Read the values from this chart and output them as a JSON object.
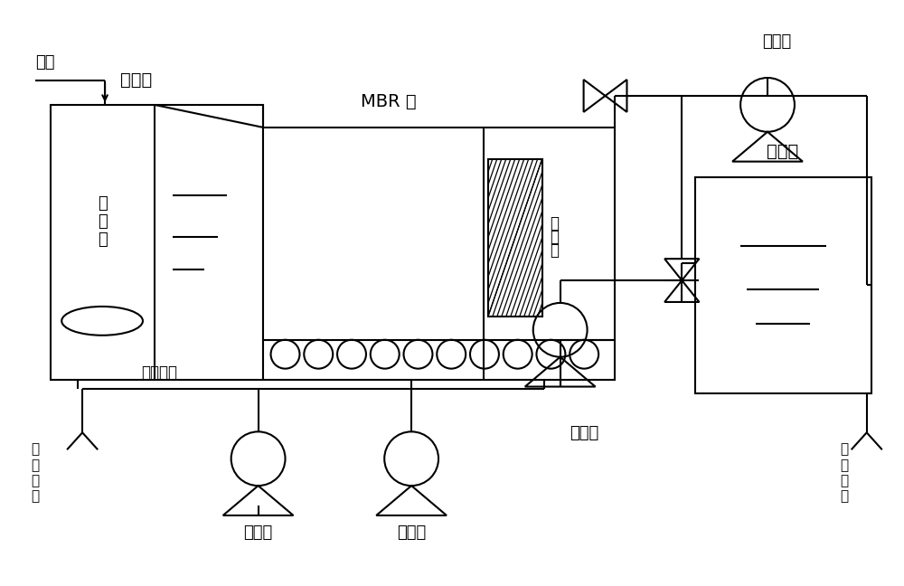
{
  "bg_color": "#ffffff",
  "line_color": "#000000",
  "lw": 1.5,
  "labels": {
    "anaerobic_tank": "厌氧池",
    "mbr_tank": "MBR 池",
    "backwash_pump": "反洗泵",
    "wastewater": "废水",
    "mixer": "搅拌器",
    "membrane": "膜组件",
    "sludge_cycle": "污泥循环",
    "sludge_discharge_v": "污\n泥\n排\n放",
    "sludge_pump": "污泥泵",
    "blower": "鼓风机",
    "suction_pump": "抽吸泵",
    "product_tank": "产水池",
    "product_discharge_v": "产\n水\n排\n放"
  },
  "figsize": [
    10.0,
    6.48
  ],
  "dpi": 100
}
